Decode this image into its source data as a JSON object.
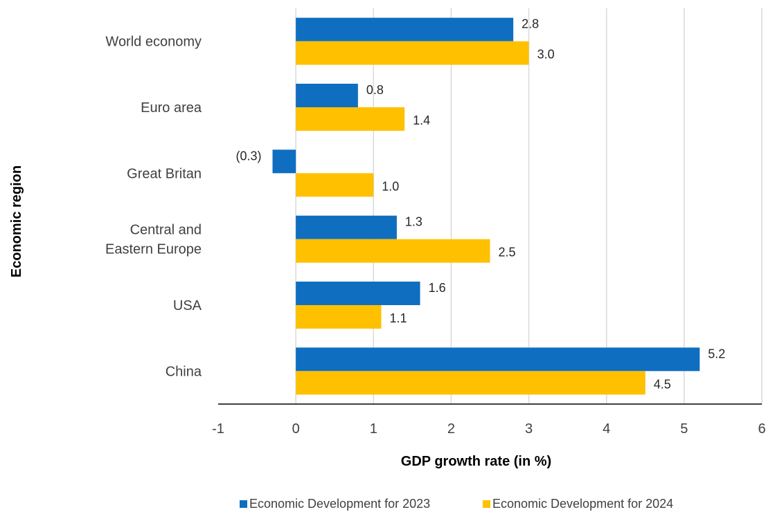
{
  "chart_data": {
    "type": "bar",
    "orientation": "horizontal",
    "categories": [
      "World economy",
      "Euro area",
      "Great Britan",
      "Central and Eastern Europe",
      "USA",
      "China"
    ],
    "category_lines": [
      [
        "World economy"
      ],
      [
        "Euro area"
      ],
      [
        "Great Britan"
      ],
      [
        "Central and",
        "Eastern Europe"
      ],
      [
        "USA"
      ],
      [
        "China"
      ]
    ],
    "series": [
      {
        "name": "Economic Development for 2023",
        "color": "#0F6EC0",
        "values": [
          2.8,
          0.8,
          -0.3,
          1.3,
          1.6,
          5.2
        ],
        "labels": [
          "2.8",
          "0.8",
          "(0.3)",
          "1.3",
          "1.6",
          "5.2"
        ]
      },
      {
        "name": "Economic Development for 2024",
        "color": "#FFC000",
        "values": [
          3.0,
          1.4,
          1.0,
          2.5,
          1.1,
          4.5
        ],
        "labels": [
          "3.0",
          "1.4",
          "1.0",
          "2.5",
          "1.1",
          "4.5"
        ]
      }
    ],
    "xlim": [
      -1,
      6
    ],
    "xticks": [
      -1,
      0,
      1,
      2,
      3,
      4,
      5,
      6
    ],
    "xlabel": "GDP growth rate (in %)",
    "ylabel": "Economic region",
    "grid": "vertical",
    "legend_position": "bottom"
  }
}
